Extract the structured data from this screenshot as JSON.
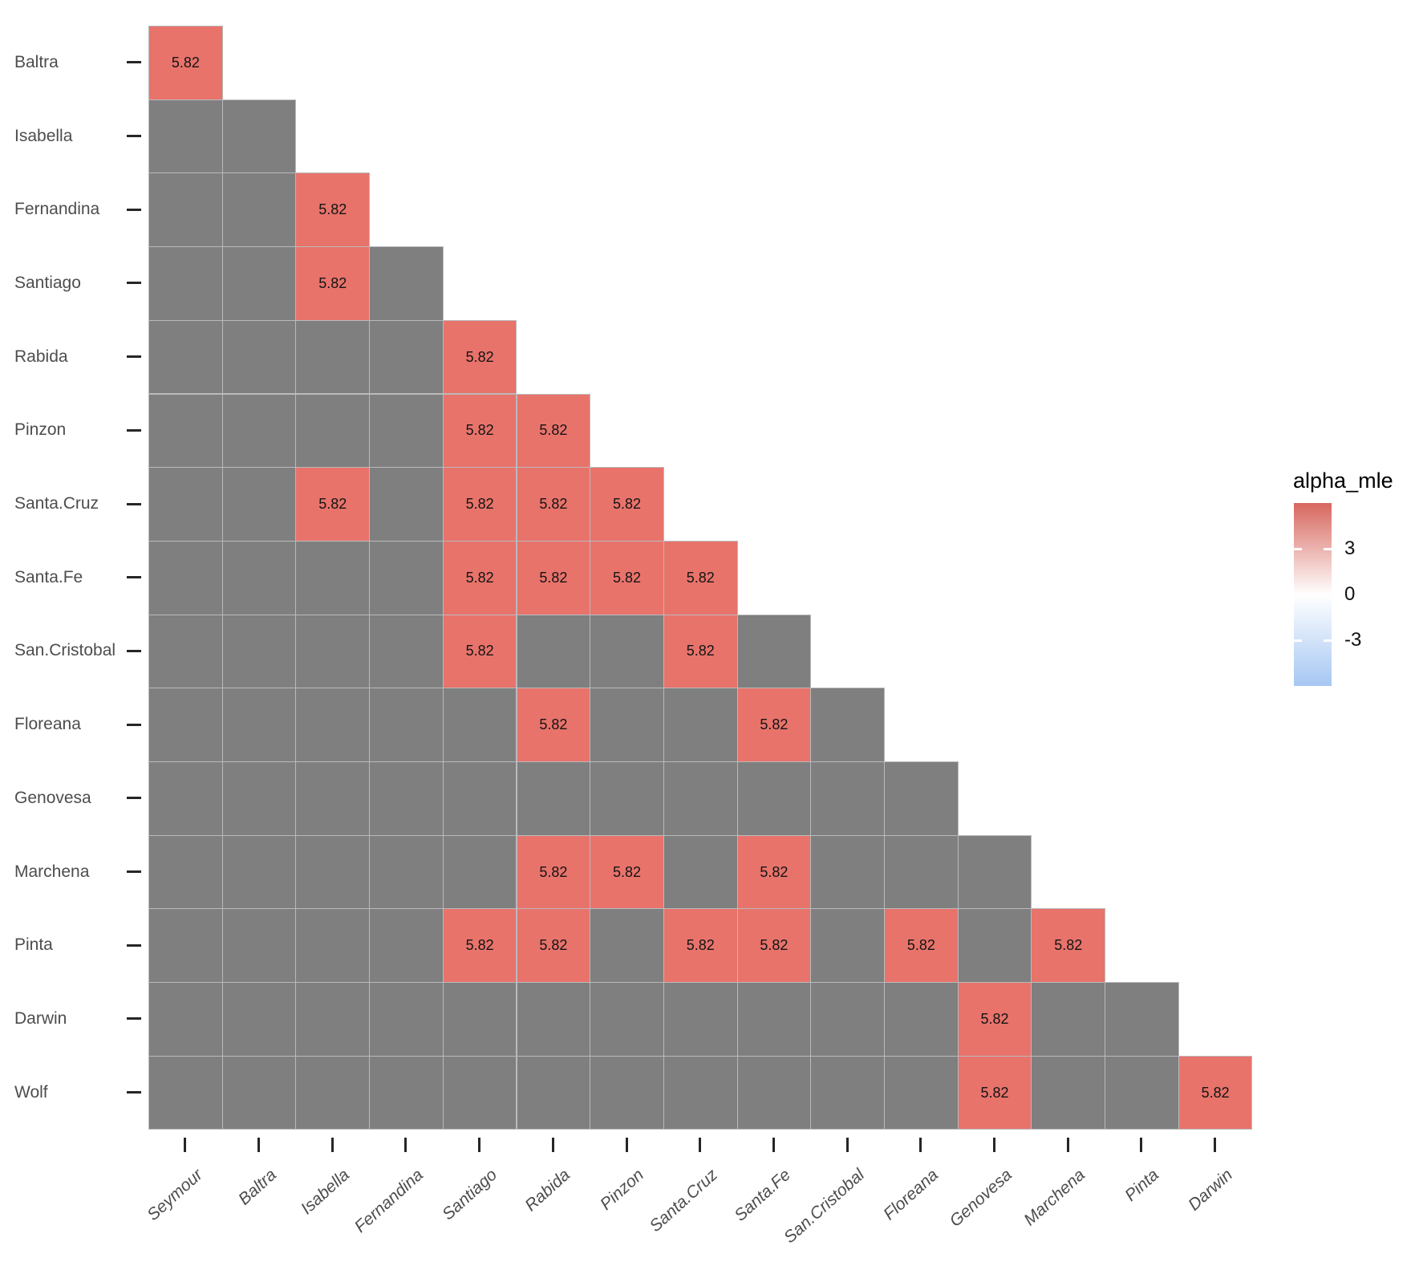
{
  "chart_data": {
    "type": "heatmap",
    "shape": "lower-triangular",
    "title": "",
    "xlabel": "",
    "ylabel": "",
    "grid": false,
    "x_categories": [
      "Seymour",
      "Baltra",
      "Isabella",
      "Fernandina",
      "Santiago",
      "Rabida",
      "Pinzon",
      "Santa.Cruz",
      "Santa.Fe",
      "San.Cristobal",
      "Floreana",
      "Genovesa",
      "Marchena",
      "Pinta",
      "Darwin"
    ],
    "rows": [
      {
        "label": "Baltra",
        "values": [
          5.82
        ]
      },
      {
        "label": "Isabella",
        "values": [
          null,
          null
        ]
      },
      {
        "label": "Fernandina",
        "values": [
          null,
          null,
          5.82
        ]
      },
      {
        "label": "Santiago",
        "values": [
          null,
          null,
          5.82,
          null
        ]
      },
      {
        "label": "Rabida",
        "values": [
          null,
          null,
          null,
          null,
          5.82
        ]
      },
      {
        "label": "Pinzon",
        "values": [
          null,
          null,
          null,
          null,
          5.82,
          5.82
        ]
      },
      {
        "label": "Santa.Cruz",
        "values": [
          null,
          null,
          5.82,
          null,
          5.82,
          5.82,
          5.82
        ]
      },
      {
        "label": "Santa.Fe",
        "values": [
          null,
          null,
          null,
          null,
          5.82,
          5.82,
          5.82,
          5.82
        ]
      },
      {
        "label": "San.Cristobal",
        "values": [
          null,
          null,
          null,
          null,
          5.82,
          null,
          null,
          5.82,
          null
        ]
      },
      {
        "label": "Floreana",
        "values": [
          null,
          null,
          null,
          null,
          null,
          5.82,
          null,
          null,
          5.82,
          null
        ]
      },
      {
        "label": "Genovesa",
        "values": [
          null,
          null,
          null,
          null,
          null,
          null,
          null,
          null,
          null,
          null,
          null
        ]
      },
      {
        "label": "Marchena",
        "values": [
          null,
          null,
          null,
          null,
          null,
          5.82,
          5.82,
          null,
          5.82,
          null,
          null,
          null
        ]
      },
      {
        "label": "Pinta",
        "values": [
          null,
          null,
          null,
          null,
          5.82,
          5.82,
          null,
          5.82,
          5.82,
          null,
          5.82,
          null,
          5.82
        ]
      },
      {
        "label": "Darwin",
        "values": [
          null,
          null,
          null,
          null,
          null,
          null,
          null,
          null,
          null,
          null,
          null,
          5.82,
          null,
          null
        ]
      },
      {
        "label": "Wolf",
        "values": [
          null,
          null,
          null,
          null,
          null,
          null,
          null,
          null,
          null,
          null,
          null,
          5.82,
          null,
          null,
          5.82
        ]
      }
    ],
    "cell_value_label": "5.82",
    "legend": {
      "title": "alpha_mle",
      "position": "right",
      "tick_labels": [
        "3",
        "0",
        "-3"
      ],
      "tick_values": [
        3,
        0,
        -3
      ],
      "domain": [
        -6,
        6
      ]
    },
    "colors": {
      "highlight": "#E8736B",
      "base": "#7F7F7F",
      "grid_line": "#BABABC",
      "axis_text": "#4D4D4D",
      "cell_text": "#141414",
      "legend_gradient_top": "#D7675F",
      "legend_gradient_mid": "#FFFFFF",
      "legend_gradient_bottom": "#A6C7F3"
    }
  }
}
